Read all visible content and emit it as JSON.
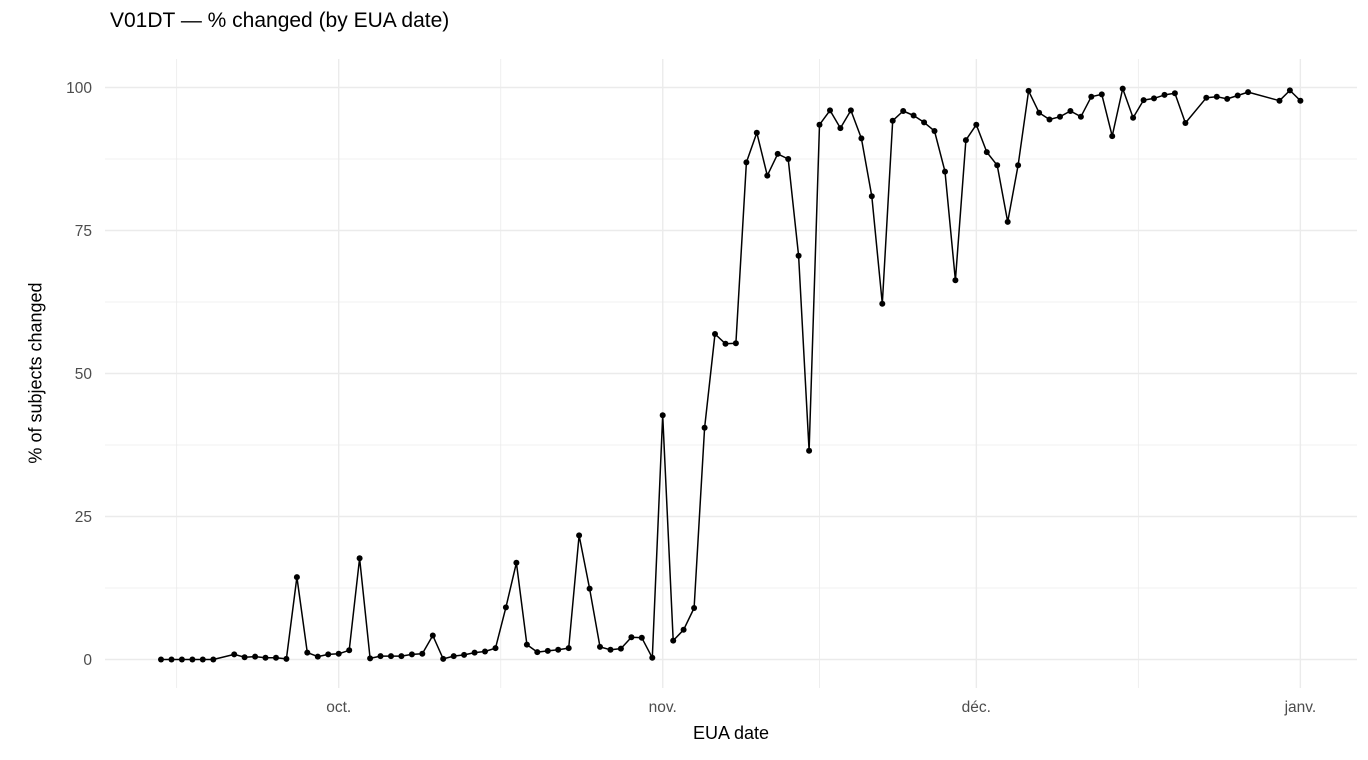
{
  "title": "V01DT — % changed (by EUA date)",
  "chart_data": {
    "type": "line",
    "title": "V01DT — % changed (by EUA date)",
    "xlabel": "EUA date",
    "ylabel": "% of subjects changed",
    "ylim": [
      0,
      100
    ],
    "y_ticks": [
      0,
      25,
      50,
      75,
      100
    ],
    "x_ticks": [
      {
        "label": "oct.",
        "date": "10-01"
      },
      {
        "label": "nov.",
        "date": "11-01"
      },
      {
        "label": "déc.",
        "date": "12-01"
      },
      {
        "label": "janv.",
        "date": "01-01"
      }
    ],
    "grid": "major-and-minor",
    "legend": "none",
    "line_color": "#000000",
    "point_color": "#000000",
    "tick_label_color": "#4d4d4d",
    "grid_color": "#ebebeb",
    "points": [
      {
        "x": "09-14",
        "y": 0.0
      },
      {
        "x": "09-15",
        "y": 0.0
      },
      {
        "x": "09-16",
        "y": 0.0
      },
      {
        "x": "09-17",
        "y": 0.0
      },
      {
        "x": "09-18",
        "y": 0.0
      },
      {
        "x": "09-19",
        "y": 0.0
      },
      {
        "x": "09-21",
        "y": 0.9
      },
      {
        "x": "09-22",
        "y": 0.4
      },
      {
        "x": "09-23",
        "y": 0.5
      },
      {
        "x": "09-24",
        "y": 0.3
      },
      {
        "x": "09-25",
        "y": 0.3
      },
      {
        "x": "09-26",
        "y": 0.1
      },
      {
        "x": "09-27",
        "y": 14.4
      },
      {
        "x": "09-28",
        "y": 1.2
      },
      {
        "x": "09-29",
        "y": 0.5
      },
      {
        "x": "09-30",
        "y": 0.9
      },
      {
        "x": "10-01",
        "y": 1.0
      },
      {
        "x": "10-02",
        "y": 1.6
      },
      {
        "x": "10-03",
        "y": 17.7
      },
      {
        "x": "10-04",
        "y": 0.2
      },
      {
        "x": "10-05",
        "y": 0.6
      },
      {
        "x": "10-06",
        "y": 0.6
      },
      {
        "x": "10-07",
        "y": 0.6
      },
      {
        "x": "10-08",
        "y": 0.9
      },
      {
        "x": "10-09",
        "y": 1.0
      },
      {
        "x": "10-10",
        "y": 4.2
      },
      {
        "x": "10-11",
        "y": 0.1
      },
      {
        "x": "10-12",
        "y": 0.6
      },
      {
        "x": "10-13",
        "y": 0.8
      },
      {
        "x": "10-14",
        "y": 1.2
      },
      {
        "x": "10-15",
        "y": 1.4
      },
      {
        "x": "10-16",
        "y": 2.0
      },
      {
        "x": "10-17",
        "y": 9.1
      },
      {
        "x": "10-18",
        "y": 16.9
      },
      {
        "x": "10-19",
        "y": 2.6
      },
      {
        "x": "10-20",
        "y": 1.3
      },
      {
        "x": "10-21",
        "y": 1.5
      },
      {
        "x": "10-22",
        "y": 1.7
      },
      {
        "x": "10-23",
        "y": 2.0
      },
      {
        "x": "10-24",
        "y": 21.7
      },
      {
        "x": "10-25",
        "y": 12.4
      },
      {
        "x": "10-26",
        "y": 2.2
      },
      {
        "x": "10-27",
        "y": 1.7
      },
      {
        "x": "10-28",
        "y": 1.9
      },
      {
        "x": "10-29",
        "y": 3.9
      },
      {
        "x": "10-30",
        "y": 3.8
      },
      {
        "x": "10-31",
        "y": 0.3
      },
      {
        "x": "11-01",
        "y": 42.7
      },
      {
        "x": "11-02",
        "y": 3.3
      },
      {
        "x": "11-03",
        "y": 5.2
      },
      {
        "x": "11-04",
        "y": 9.0
      },
      {
        "x": "11-05",
        "y": 40.5
      },
      {
        "x": "11-06",
        "y": 56.9
      },
      {
        "x": "11-07",
        "y": 55.2
      },
      {
        "x": "11-08",
        "y": 55.3
      },
      {
        "x": "11-09",
        "y": 86.9
      },
      {
        "x": "11-10",
        "y": 92.1
      },
      {
        "x": "11-11",
        "y": 84.6
      },
      {
        "x": "11-12",
        "y": 88.4
      },
      {
        "x": "11-13",
        "y": 87.5
      },
      {
        "x": "11-14",
        "y": 70.6
      },
      {
        "x": "11-15",
        "y": 36.5
      },
      {
        "x": "11-16",
        "y": 93.5
      },
      {
        "x": "11-17",
        "y": 96.0
      },
      {
        "x": "11-18",
        "y": 92.9
      },
      {
        "x": "11-19",
        "y": 96.0
      },
      {
        "x": "11-20",
        "y": 91.1
      },
      {
        "x": "11-21",
        "y": 81.0
      },
      {
        "x": "11-22",
        "y": 62.2
      },
      {
        "x": "11-23",
        "y": 94.2
      },
      {
        "x": "11-24",
        "y": 95.9
      },
      {
        "x": "11-25",
        "y": 95.1
      },
      {
        "x": "11-26",
        "y": 93.9
      },
      {
        "x": "11-27",
        "y": 92.4
      },
      {
        "x": "11-28",
        "y": 85.3
      },
      {
        "x": "11-29",
        "y": 66.3
      },
      {
        "x": "11-30",
        "y": 90.8
      },
      {
        "x": "12-01",
        "y": 93.5
      },
      {
        "x": "12-02",
        "y": 88.7
      },
      {
        "x": "12-03",
        "y": 86.4
      },
      {
        "x": "12-04",
        "y": 76.5
      },
      {
        "x": "12-05",
        "y": 86.4
      },
      {
        "x": "12-06",
        "y": 99.4
      },
      {
        "x": "12-07",
        "y": 95.6
      },
      {
        "x": "12-08",
        "y": 94.4
      },
      {
        "x": "12-09",
        "y": 94.9
      },
      {
        "x": "12-10",
        "y": 95.9
      },
      {
        "x": "12-11",
        "y": 94.9
      },
      {
        "x": "12-12",
        "y": 98.4
      },
      {
        "x": "12-13",
        "y": 98.8
      },
      {
        "x": "12-14",
        "y": 91.5
      },
      {
        "x": "12-15",
        "y": 99.8
      },
      {
        "x": "12-16",
        "y": 94.7
      },
      {
        "x": "12-17",
        "y": 97.8
      },
      {
        "x": "12-18",
        "y": 98.1
      },
      {
        "x": "12-19",
        "y": 98.7
      },
      {
        "x": "12-20",
        "y": 99.0
      },
      {
        "x": "12-21",
        "y": 93.8
      },
      {
        "x": "12-23",
        "y": 98.2
      },
      {
        "x": "12-24",
        "y": 98.4
      },
      {
        "x": "12-25",
        "y": 98.0
      },
      {
        "x": "12-26",
        "y": 98.6
      },
      {
        "x": "12-27",
        "y": 99.2
      },
      {
        "x": "12-30",
        "y": 97.7
      },
      {
        "x": "12-31",
        "y": 99.5
      },
      {
        "x": "01-01",
        "y": 97.7
      }
    ]
  }
}
